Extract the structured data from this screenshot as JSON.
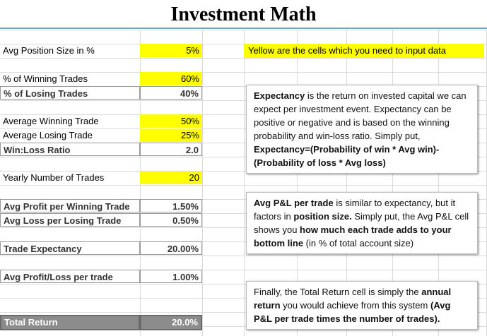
{
  "title": "Investment Math",
  "rows": [
    {
      "label": "Avg Position Size in %",
      "value": "5%",
      "kind": "input",
      "row": 1
    },
    {
      "label": "% of Winning Trades",
      "value": "60%",
      "kind": "input",
      "row": 3
    },
    {
      "label": "% of Losing Trades",
      "value": "40%",
      "kind": "calc",
      "row": 4
    },
    {
      "label": "Average Winning Trade",
      "value": "50%",
      "kind": "input",
      "row": 6
    },
    {
      "label": "Average Losing Trade",
      "value": "25%",
      "kind": "input",
      "row": 7
    },
    {
      "label": "Win:Loss Ratio",
      "value": "2.0",
      "kind": "calc",
      "row": 8
    },
    {
      "label": "Yearly Number of Trades",
      "value": "20",
      "kind": "input",
      "row": 10
    },
    {
      "label": "Avg Profit per Winning Trade",
      "value": "1.50%",
      "kind": "calc",
      "row": 12
    },
    {
      "label": "Avg Loss per Losing Trade",
      "value": "0.50%",
      "kind": "calc",
      "row": 13
    },
    {
      "label": "Trade Expectancy",
      "value": "20.00%",
      "kind": "calc",
      "row": 15
    },
    {
      "label": "Avg Profit/Loss per trade",
      "value": "1.00%",
      "kind": "calc",
      "row": 17
    },
    {
      "label": "Total Return",
      "value": "20.0%",
      "kind": "total",
      "row": 20
    }
  ],
  "legend_note": "Yellow are the cells which you need to input data",
  "notes": [
    {
      "segments": [
        {
          "text": "Expectancy",
          "bold": true
        },
        {
          "text": " is the return on invested capital we can expect per investment event. Expectancy can be positive or negative and is based on the winning probability and win-loss ratio. Simply put, ",
          "bold": false
        },
        {
          "text": "Expectancy=(Probability of win * Avg win)-(Probability of loss * Avg loss)",
          "bold": true
        }
      ]
    },
    {
      "segments": [
        {
          "text": "Avg P&L per trade",
          "bold": true
        },
        {
          "text": " is similar to expectancy, but it factors in ",
          "bold": false
        },
        {
          "text": "position size.",
          "bold": true
        },
        {
          "text": " Simply put, the Avg P&L cell shows you ",
          "bold": false
        },
        {
          "text": "how much each trade adds to your bottom line",
          "bold": true
        },
        {
          "text": " (in % of total account size)",
          "bold": false
        }
      ]
    },
    {
      "segments": [
        {
          "text": "Finally, the Total Return cell is simply the ",
          "bold": false
        },
        {
          "text": "annual return",
          "bold": true
        },
        {
          "text": " you would achieve from this system ",
          "bold": false
        },
        {
          "text": "(Avg P&L per trade times the number of trades).",
          "bold": true
        }
      ]
    }
  ]
}
